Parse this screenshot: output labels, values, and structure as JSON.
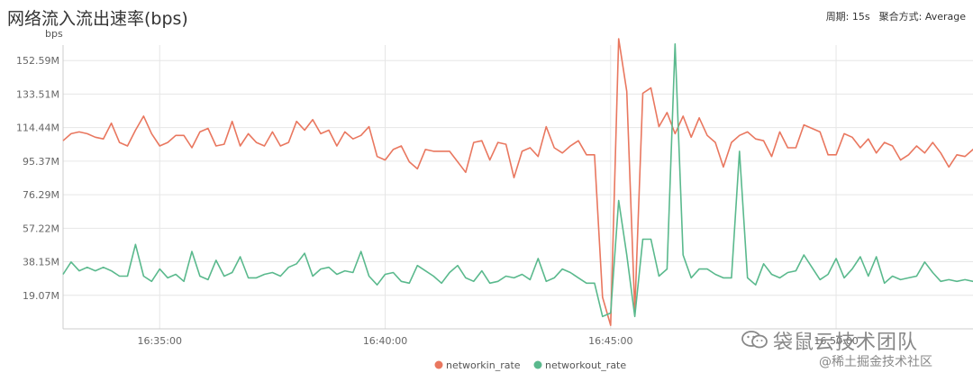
{
  "header": {
    "title": "网络流入流出速率(bps)",
    "period_label": "周期: 15s",
    "aggregate_label": "聚合方式: Average"
  },
  "watermark": {
    "line1": "袋鼠云技术团队",
    "line2": "@稀土掘金技术社区",
    "icon": "wechat-icon"
  },
  "colors": {
    "networkin": "#e9775f",
    "networkout": "#5ab98d",
    "grid": "#e6e6e6"
  },
  "chart_data": {
    "type": "line",
    "title": "网络流入流出速率(bps)",
    "ylabel": "bps",
    "xlabel": "",
    "ylim": [
      0,
      171.65
    ],
    "y_ticks": [
      19.07,
      38.15,
      57.22,
      76.29,
      95.37,
      114.44,
      133.51,
      152.59
    ],
    "y_tick_labels": [
      "19.07M",
      "38.15M",
      "57.22M",
      "76.29M",
      "95.37M",
      "114.44M",
      "133.51M",
      "152.59M"
    ],
    "x_ticks": [
      12,
      40,
      68,
      96
    ],
    "x_tick_labels": [
      "16:35:00",
      "16:40:00",
      "16:45:00",
      "16:50:00"
    ],
    "grid": true,
    "legend_position": "bottom-center",
    "x_range": [
      0,
      113
    ],
    "x_interval": "15s",
    "series": [
      {
        "name": "networkin_rate",
        "values": [
          107,
          111,
          112,
          111,
          109,
          108,
          117,
          106,
          104,
          113,
          121,
          111,
          104,
          106,
          110,
          110,
          103,
          112,
          114,
          104,
          105,
          118,
          104,
          111,
          106,
          104,
          112,
          104,
          106,
          118,
          113,
          119,
          111,
          113,
          104,
          112,
          108,
          110,
          115,
          98,
          96,
          102,
          104,
          95,
          91,
          102,
          101,
          101,
          101,
          95,
          89,
          106,
          107,
          96,
          106,
          105,
          86,
          101,
          103,
          98,
          115,
          103,
          100,
          104,
          107,
          99,
          99,
          18,
          2,
          165,
          135,
          10,
          134,
          137,
          115,
          123,
          111,
          121,
          109,
          120,
          110,
          106,
          92,
          106,
          110,
          112,
          108,
          107,
          98,
          112,
          103,
          103,
          116,
          114,
          112,
          99,
          99,
          111,
          109,
          103,
          108,
          100,
          106,
          104,
          96,
          99,
          104,
          100,
          106,
          100,
          92,
          99,
          98,
          102,
          104
        ]
      },
      {
        "name": "networkout_rate",
        "values": [
          31,
          38,
          33,
          35,
          33,
          35,
          33,
          30,
          30,
          48,
          30,
          27,
          34,
          29,
          31,
          27,
          44,
          30,
          28,
          39,
          30,
          32,
          41,
          29,
          29,
          31,
          32,
          30,
          35,
          37,
          43,
          30,
          34,
          35,
          31,
          33,
          32,
          44,
          30,
          25,
          31,
          32,
          27,
          26,
          36,
          33,
          30,
          26,
          32,
          36,
          29,
          27,
          33,
          26,
          27,
          30,
          29,
          31,
          28,
          40,
          27,
          29,
          34,
          32,
          29,
          26,
          26,
          7,
          9,
          73,
          42,
          7,
          51,
          51,
          30,
          34,
          162,
          42,
          29,
          34,
          34,
          31,
          29,
          29,
          101,
          29,
          25,
          37,
          31,
          29,
          32,
          33,
          42,
          35,
          28,
          31,
          40,
          29,
          34,
          41,
          30,
          41,
          26,
          30,
          28,
          29,
          30,
          38,
          32,
          27,
          28,
          27,
          28,
          27,
          25
        ]
      }
    ]
  }
}
